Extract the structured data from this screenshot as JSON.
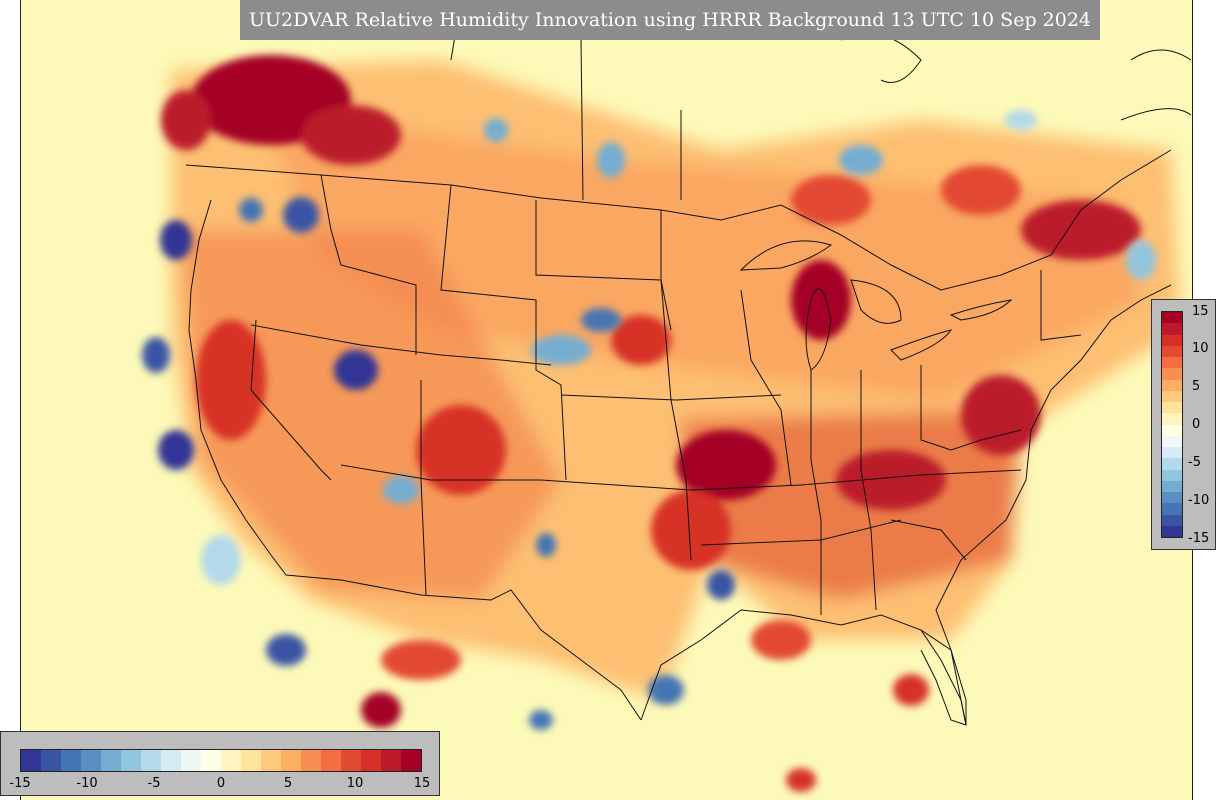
{
  "title": "UU2DVAR Relative Humidity Innovation using HRRR Background 13 UTC 10 Sep 2024",
  "colorbar": {
    "ticks_vertical": [
      "15",
      "10",
      "5",
      "0",
      "-5",
      "-10",
      "-15"
    ],
    "ticks_horizontal": [
      "-15",
      "-10",
      "-5",
      "0",
      "5",
      "10",
      "15"
    ],
    "range": [
      -15,
      15
    ],
    "colors": [
      "#313695",
      "#3a54a4",
      "#4575b4",
      "#5b8fc3",
      "#74add1",
      "#92c5de",
      "#b3d9ea",
      "#d7ebf4",
      "#f0f8f5",
      "#ffffe5",
      "#fff3c0",
      "#fee39a",
      "#fdc97a",
      "#fdae61",
      "#f98e52",
      "#f46d43",
      "#e34a33",
      "#d73027",
      "#bb1a2b",
      "#a50026"
    ]
  },
  "colors": {
    "background": "#fdfab9",
    "title_bar": "#8c8c8c",
    "colorbar_frame": "#bdbdbd",
    "boundary": "#111111"
  }
}
